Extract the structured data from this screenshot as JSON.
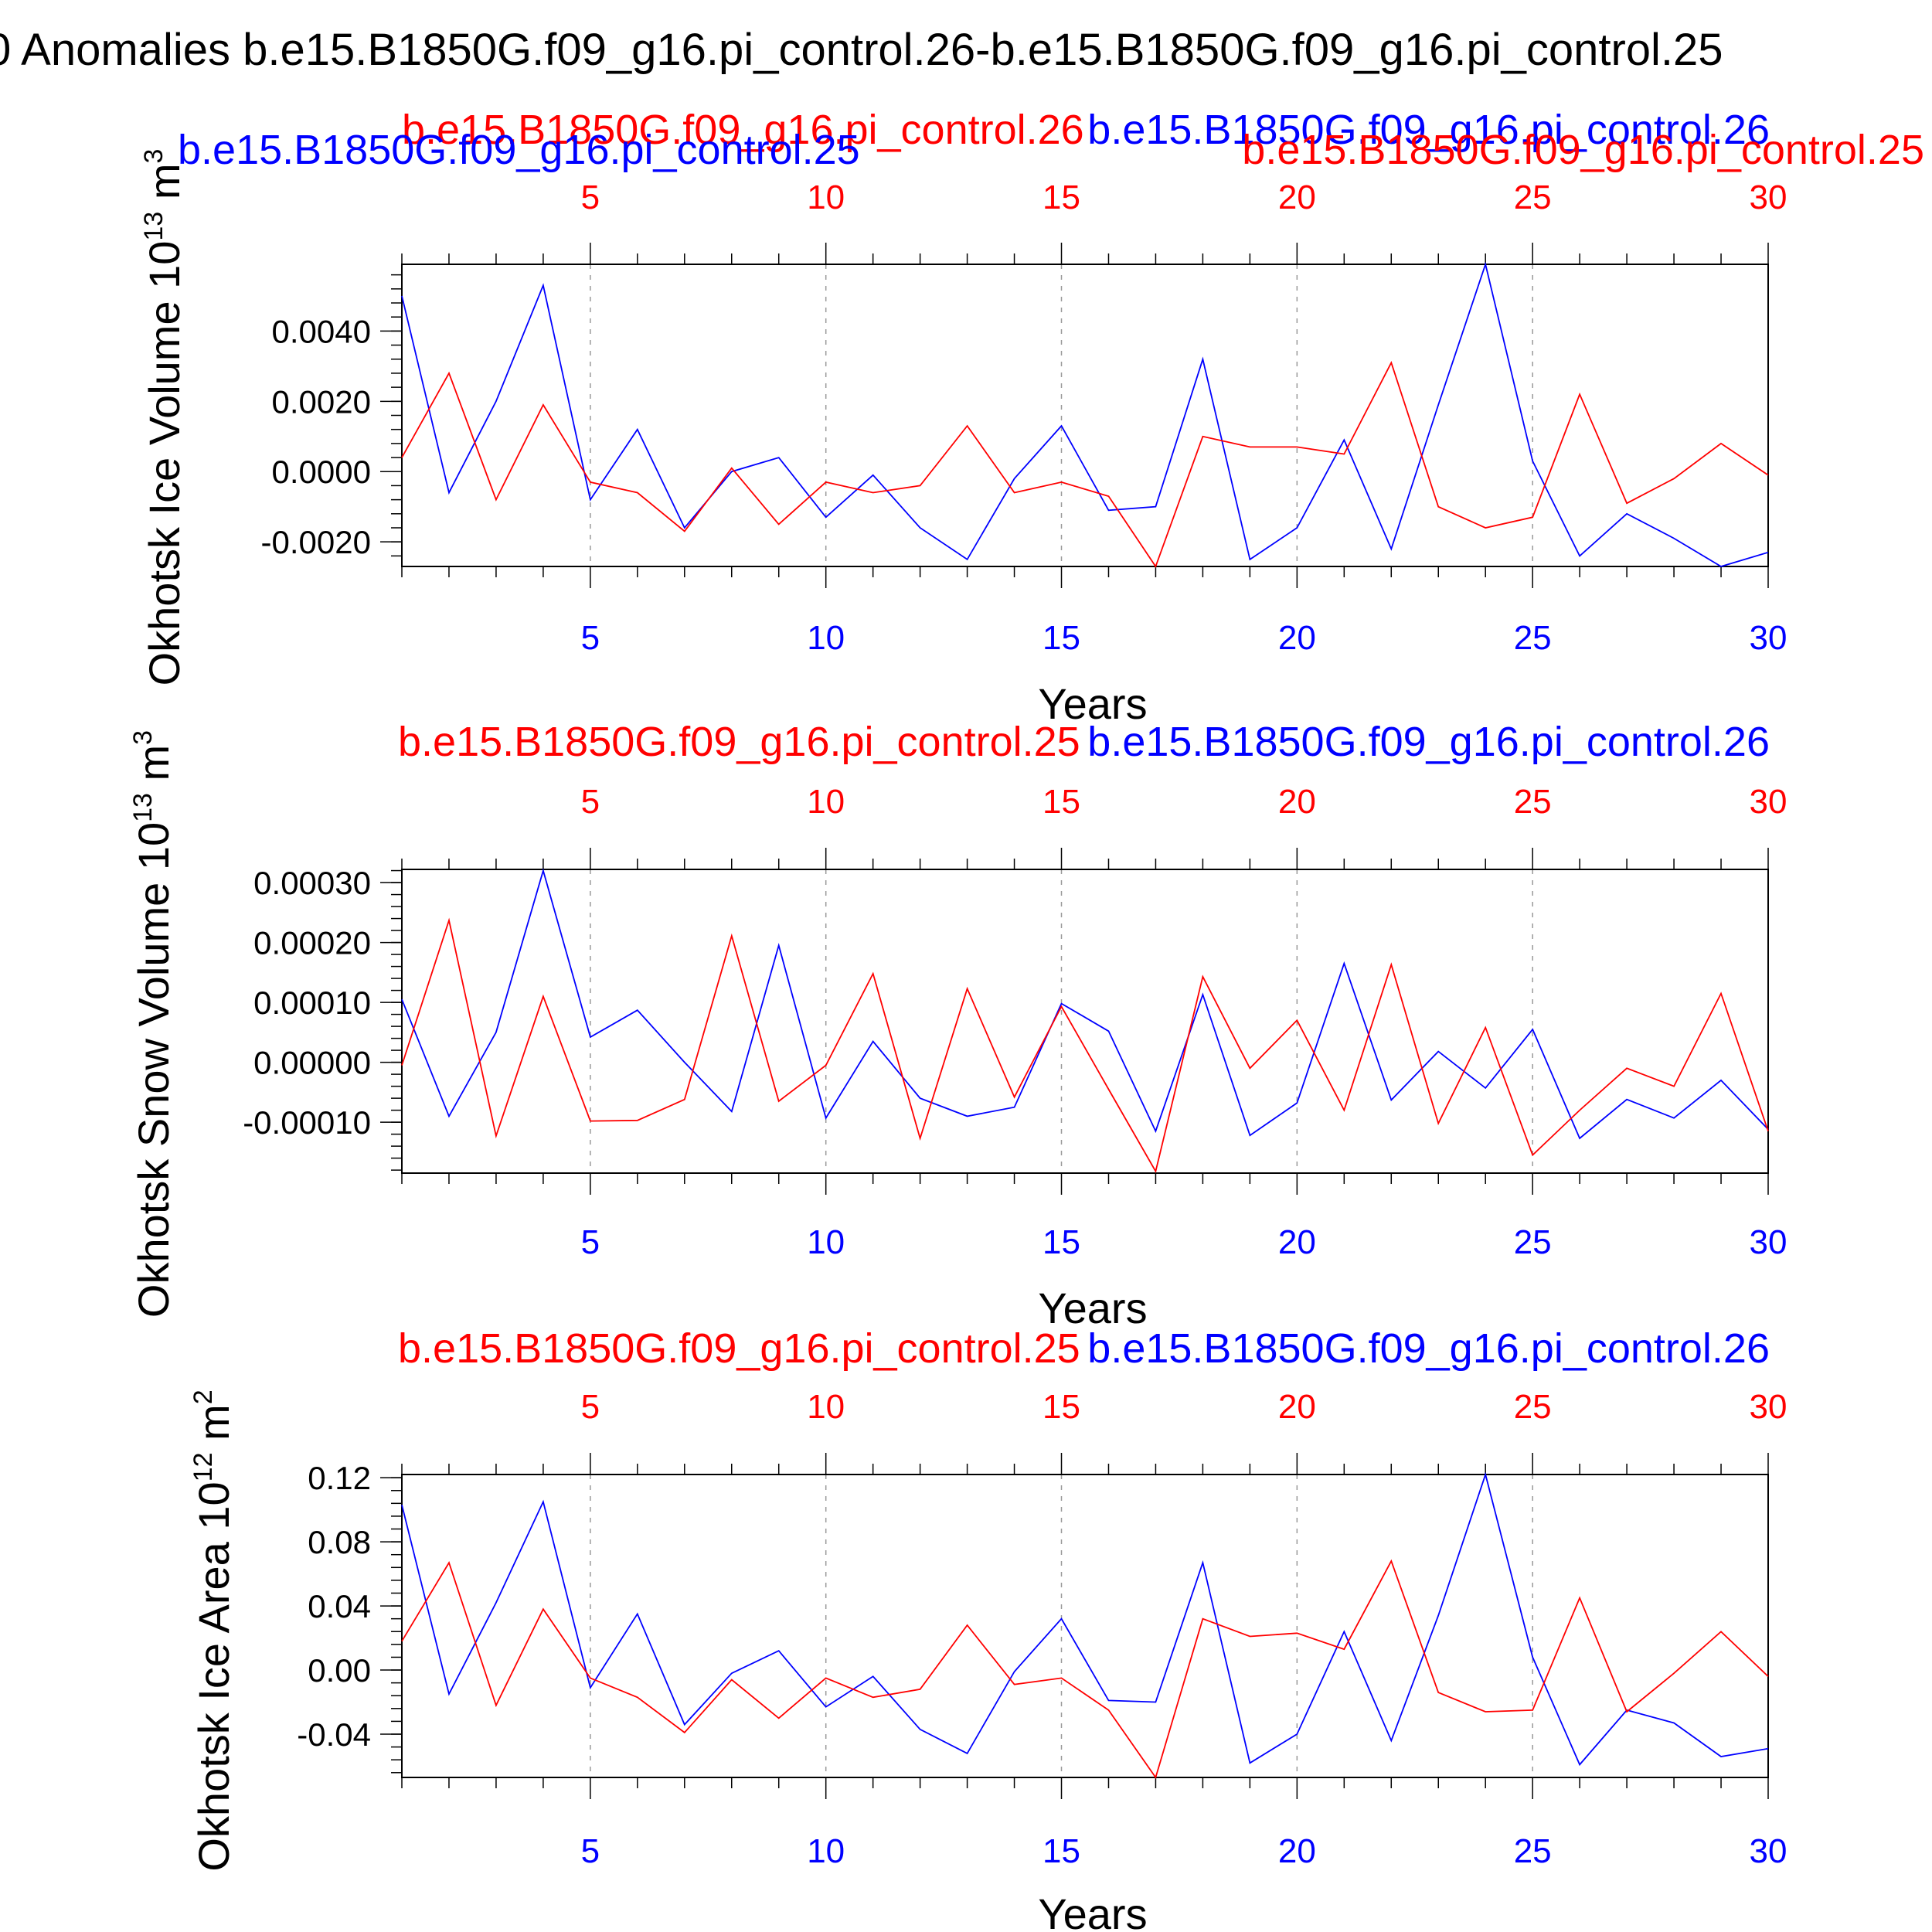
{
  "figure_title": "0 Anomalies b.e15.B1850G.f09_g16.pi_control.26-b.e15.B1850G.f09_g16.pi_control.25",
  "colors": {
    "case_a": "#0000ff",
    "case_b": "#ff0000",
    "axis": "#000000",
    "grid": "#999999"
  },
  "chart_data": [
    {
      "type": "line",
      "ylabel": "Okhotsk Ice Volume 10",
      "ylabel_exp": "13",
      "ylabel_unit": " m",
      "ylabel_unit_exp": "3",
      "xlabel": "Years",
      "xlim": [
        1,
        30
      ],
      "ylim": [
        -0.0027,
        0.0059
      ],
      "yticks": [
        -0.002,
        0.0,
        0.002,
        0.004
      ],
      "ytick_labels": [
        "-0.0020",
        "0.0000",
        "0.0020",
        "0.0040"
      ],
      "xticks": [
        5,
        10,
        15,
        20,
        25,
        30
      ],
      "xtick_labels": [
        "5",
        "10",
        "15",
        "20",
        "25",
        "30"
      ],
      "vgrid": [
        5,
        10,
        15,
        20,
        25
      ],
      "legend_labels": [
        "b.e15.B1850G.f09_g16.pi_control.26",
        "b.e15.B1850G.f09_g16.pi_control.25",
        "b.e15.B1850G.f09_g16.pi_control.26",
        "b.e15.B1850G.f09_g16.pi_control.25"
      ],
      "x": [
        1,
        2,
        3,
        4,
        5,
        6,
        7,
        8,
        9,
        10,
        11,
        12,
        13,
        14,
        15,
        16,
        17,
        18,
        19,
        20,
        21,
        22,
        23,
        24,
        25,
        26,
        27,
        28,
        29,
        30
      ],
      "series": [
        {
          "name": "b.e15.B1850G.f09_g16.pi_control.26",
          "color": "#0000ff",
          "values": [
            0.005,
            -0.0006,
            0.002,
            0.0053,
            -0.0008,
            0.0012,
            -0.0016,
            0.0,
            0.0004,
            -0.0013,
            -0.0001,
            -0.0016,
            -0.0025,
            -0.0002,
            0.0013,
            -0.0011,
            -0.001,
            0.0032,
            -0.0025,
            -0.0016,
            0.0009,
            -0.0022,
            0.0019,
            0.0059,
            0.0003,
            -0.0024,
            -0.0012,
            -0.0019,
            -0.0027,
            -0.0023
          ]
        },
        {
          "name": "b.e15.B1850G.f09_g16.pi_control.25",
          "color": "#ff0000",
          "values": [
            0.0004,
            0.0028,
            -0.0008,
            0.0019,
            -0.0003,
            -0.0006,
            -0.0017,
            0.0001,
            -0.0015,
            -0.0003,
            -0.0006,
            -0.0004,
            0.0013,
            -0.0006,
            -0.0003,
            -0.0007,
            -0.0027,
            0.001,
            0.0007,
            0.0007,
            0.0005,
            0.0031,
            -0.001,
            -0.0016,
            -0.0013,
            0.0022,
            -0.0009,
            -0.0002,
            0.0008,
            -0.0001
          ]
        }
      ]
    },
    {
      "type": "line",
      "ylabel": "Okhotsk Snow Volume 10",
      "ylabel_exp": "13",
      "ylabel_unit": " m",
      "ylabel_unit_exp": "3",
      "xlabel": "Years",
      "xlim": [
        1,
        30
      ],
      "ylim": [
        -0.000185,
        0.000322
      ],
      "yticks": [
        -0.0001,
        0.0,
        0.0001,
        0.0002,
        0.0003
      ],
      "ytick_labels": [
        "-0.00010",
        "0.00000",
        "0.00010",
        "0.00020",
        "0.00030"
      ],
      "xticks": [
        5,
        10,
        15,
        20,
        25,
        30
      ],
      "xtick_labels": [
        "5",
        "10",
        "15",
        "20",
        "25",
        "30"
      ],
      "vgrid": [
        5,
        10,
        15,
        20,
        25
      ],
      "legend_labels": [
        "b.e15.B1850G.f09_g16.pi_control.25",
        "b.e15.B1850G.f09_g16.pi_control.26"
      ],
      "x": [
        1,
        2,
        3,
        4,
        5,
        6,
        7,
        8,
        9,
        10,
        11,
        12,
        13,
        14,
        15,
        16,
        17,
        18,
        19,
        20,
        21,
        22,
        23,
        24,
        25,
        26,
        27,
        28,
        29,
        30
      ],
      "series": [
        {
          "name": "b.e15.B1850G.f09_g16.pi_control.26",
          "color": "#0000ff",
          "values": [
            0.000105,
            -9e-05,
            5e-05,
            0.00032,
            4.2e-05,
            8.7e-05,
            0.0,
            -8.2e-05,
            0.000195,
            -9.3e-05,
            3.5e-05,
            -6e-05,
            -9e-05,
            -7.5e-05,
            9.8e-05,
            5.2e-05,
            -0.000115,
            0.000113,
            -0.000122,
            -6.8e-05,
            0.000165,
            -6.3e-05,
            1.8e-05,
            -4.3e-05,
            5.5e-05,
            -0.000127,
            -6.2e-05,
            -9.3e-05,
            -3e-05,
            -0.000112
          ]
        },
        {
          "name": "b.e15.B1850G.f09_g16.pi_control.25",
          "color": "#ff0000",
          "values": [
            -5e-06,
            0.000237,
            -0.000123,
            0.00011,
            -9.8e-05,
            -9.7e-05,
            -6.2e-05,
            0.000211,
            -6.5e-05,
            -5e-06,
            0.000148,
            -0.000127,
            0.000123,
            -5.8e-05,
            9.3e-05,
            -4.5e-05,
            -0.000182,
            0.000143,
            -1e-05,
            7e-05,
            -8e-05,
            0.000163,
            -0.000102,
            5.8e-05,
            -0.000155,
            -8e-05,
            -1e-05,
            -4e-05,
            0.000115,
            -0.000115
          ]
        }
      ]
    },
    {
      "type": "line",
      "ylabel": "Okhotsk Ice Area 10",
      "ylabel_exp": "12",
      "ylabel_unit": " m",
      "ylabel_unit_exp": "2",
      "xlabel": "Years",
      "xlim": [
        1,
        30
      ],
      "ylim": [
        -0.067,
        0.122
      ],
      "yticks": [
        -0.04,
        0.0,
        0.04,
        0.08,
        0.12
      ],
      "ytick_labels": [
        "-0.04",
        "0.00",
        "0.04",
        "0.08",
        "0.12"
      ],
      "xticks": [
        5,
        10,
        15,
        20,
        25,
        30
      ],
      "xtick_labels": [
        "5",
        "10",
        "15",
        "20",
        "25",
        "30"
      ],
      "vgrid": [
        5,
        10,
        15,
        20,
        25
      ],
      "legend_labels": [
        "b.e15.B1850G.f09_g16.pi_control.25",
        "b.e15.B1850G.f09_g16.pi_control.26"
      ],
      "x": [
        1,
        2,
        3,
        4,
        5,
        6,
        7,
        8,
        9,
        10,
        11,
        12,
        13,
        14,
        15,
        16,
        17,
        18,
        19,
        20,
        21,
        22,
        23,
        24,
        25,
        26,
        27,
        28,
        29,
        30
      ],
      "series": [
        {
          "name": "b.e15.B1850G.f09_g16.pi_control.26",
          "color": "#0000ff",
          "values": [
            0.103,
            -0.015,
            0.042,
            0.105,
            -0.011,
            0.035,
            -0.034,
            -0.002,
            0.012,
            -0.023,
            -0.004,
            -0.037,
            -0.052,
            -0.001,
            0.032,
            -0.019,
            -0.02,
            0.067,
            -0.058,
            -0.04,
            0.024,
            -0.044,
            0.034,
            0.122,
            0.008,
            -0.059,
            -0.025,
            -0.033,
            -0.054,
            -0.049
          ]
        },
        {
          "name": "b.e15.B1850G.f09_g16.pi_control.25",
          "color": "#ff0000",
          "values": [
            0.018,
            0.067,
            -0.022,
            0.038,
            -0.005,
            -0.017,
            -0.039,
            -0.006,
            -0.03,
            -0.005,
            -0.017,
            -0.012,
            0.028,
            -0.009,
            -0.005,
            -0.025,
            -0.067,
            0.032,
            0.021,
            0.023,
            0.013,
            0.068,
            -0.014,
            -0.026,
            -0.025,
            0.045,
            -0.026,
            -0.002,
            0.024,
            -0.004
          ]
        }
      ]
    }
  ]
}
